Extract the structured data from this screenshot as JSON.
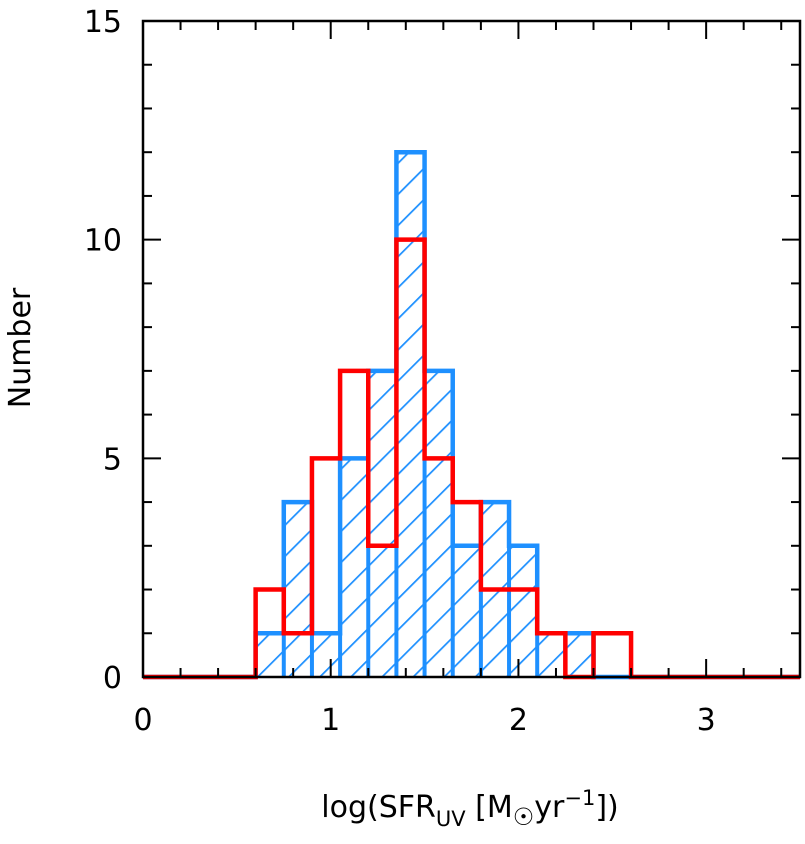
{
  "chart_data": {
    "type": "histogram",
    "xlabel": "log(SFR",
    "xlabel_sub": "UV",
    "xlabel_unit_open": " [M",
    "xlabel_unit_mid": "yr",
    "xlabel_sup": "−1",
    "xlabel_close": "])",
    "ylabel": "Number",
    "xlim": [
      0,
      3.5
    ],
    "ylim": [
      0,
      15
    ],
    "x_ticks": [
      0,
      1,
      2,
      3
    ],
    "y_ticks": [
      0,
      5,
      10,
      15
    ],
    "x_tick_labels": [
      "0",
      "1",
      "2",
      "3"
    ],
    "y_tick_labels": [
      "0",
      "5",
      "10",
      "15"
    ],
    "x_minor_step": 0.2,
    "y_minor_step": 1,
    "bin_edges": [
      0.0,
      0.2,
      0.4,
      0.6,
      0.75,
      0.9,
      1.05,
      1.2,
      1.35,
      1.5,
      1.65,
      1.8,
      1.95,
      2.1,
      2.25,
      2.4,
      2.6,
      2.8,
      3.0,
      3.2,
      3.5
    ],
    "series": [
      {
        "color": "#1e90ff",
        "style": "hatched",
        "counts": [
          0,
          0,
          0,
          1,
          4,
          1,
          5,
          7,
          12,
          7,
          3,
          4,
          3,
          1,
          1,
          0,
          0,
          0,
          0,
          0
        ]
      },
      {
        "color": "#ff0000",
        "style": "outline",
        "counts": [
          0,
          0,
          0,
          2,
          1,
          5,
          7,
          3,
          10,
          5,
          4,
          2,
          2,
          1,
          0,
          1,
          0,
          0,
          0,
          0
        ]
      }
    ]
  }
}
